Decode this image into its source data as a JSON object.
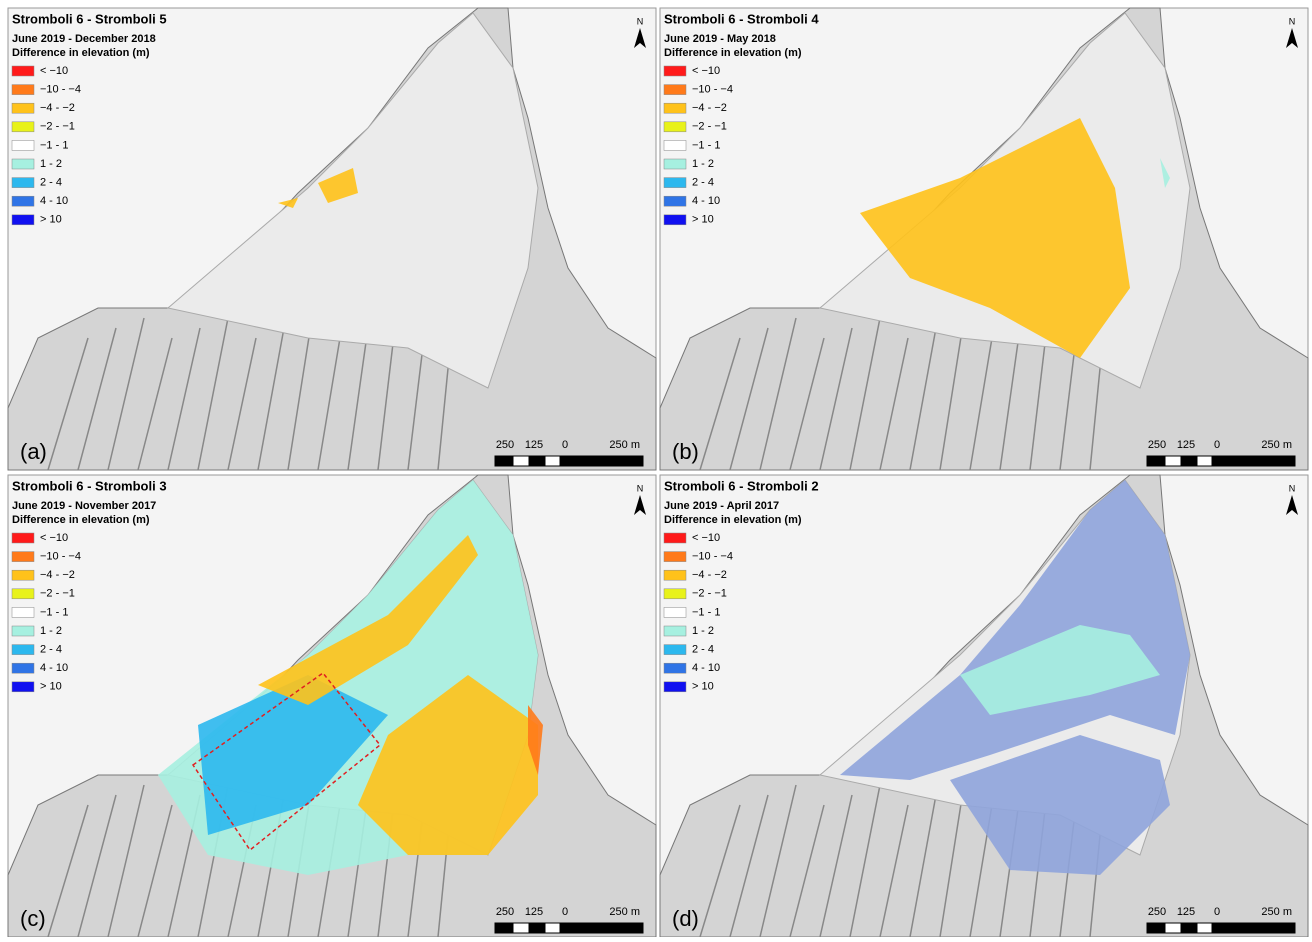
{
  "panels": [
    {
      "title": "Stromboli 6 - Stromboli 5",
      "subtitle": "June 2019 - December 2018",
      "legend_title": "Difference in elevation (m)",
      "label": "(a)"
    },
    {
      "title": "Stromboli 6 - Stromboli 4",
      "subtitle": "June 2019 - May 2018",
      "legend_title": "Difference in elevation (m)",
      "label": "(b)"
    },
    {
      "title": "Stromboli 6 - Stromboli 3",
      "subtitle": "June 2019 - November 2017",
      "legend_title": "Difference in elevation (m)",
      "label": "(c)"
    },
    {
      "title": "Stromboli 6 - Stromboli 2",
      "subtitle": "June 2019 - April 2017",
      "legend_title": "Difference in elevation (m)",
      "label": "(d)"
    }
  ],
  "legend": [
    {
      "label": "< −10",
      "color": "#ff1a1a"
    },
    {
      "label": "−10 - −4",
      "color": "#ff7a1a"
    },
    {
      "label": "−4 - −2",
      "color": "#ffc21a"
    },
    {
      "label": "−2 - −1",
      "color": "#e8f21a"
    },
    {
      "label": "−1 - 1",
      "color": "#ffffff"
    },
    {
      "label": "1 - 2",
      "color": "#a6f0e0"
    },
    {
      "label": "2 - 4",
      "color": "#2cb8ee"
    },
    {
      "label": "4 - 10",
      "color": "#2f74e6"
    },
    {
      "label": "> 10",
      "color": "#1010f0"
    }
  ],
  "scale_bar": [
    "250",
    "125",
    "0",
    "250 m"
  ],
  "north": "N"
}
